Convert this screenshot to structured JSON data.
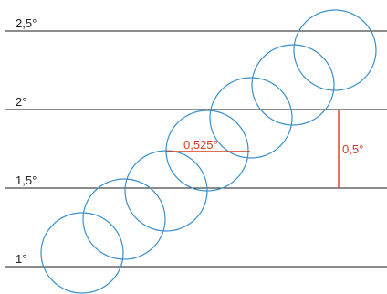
{
  "colors": {
    "circle": "#3a8fc9",
    "measure": "#d43d1e",
    "line": "#1a1a1a",
    "text": "#222222"
  },
  "levels": [
    {
      "label": "2,5°"
    },
    {
      "label": "2°"
    },
    {
      "label": "1,5°"
    },
    {
      "label": "1°"
    }
  ],
  "circles_count": 7,
  "measurements": {
    "horizontal_label": "0,525°",
    "vertical_label": "0,5°"
  }
}
